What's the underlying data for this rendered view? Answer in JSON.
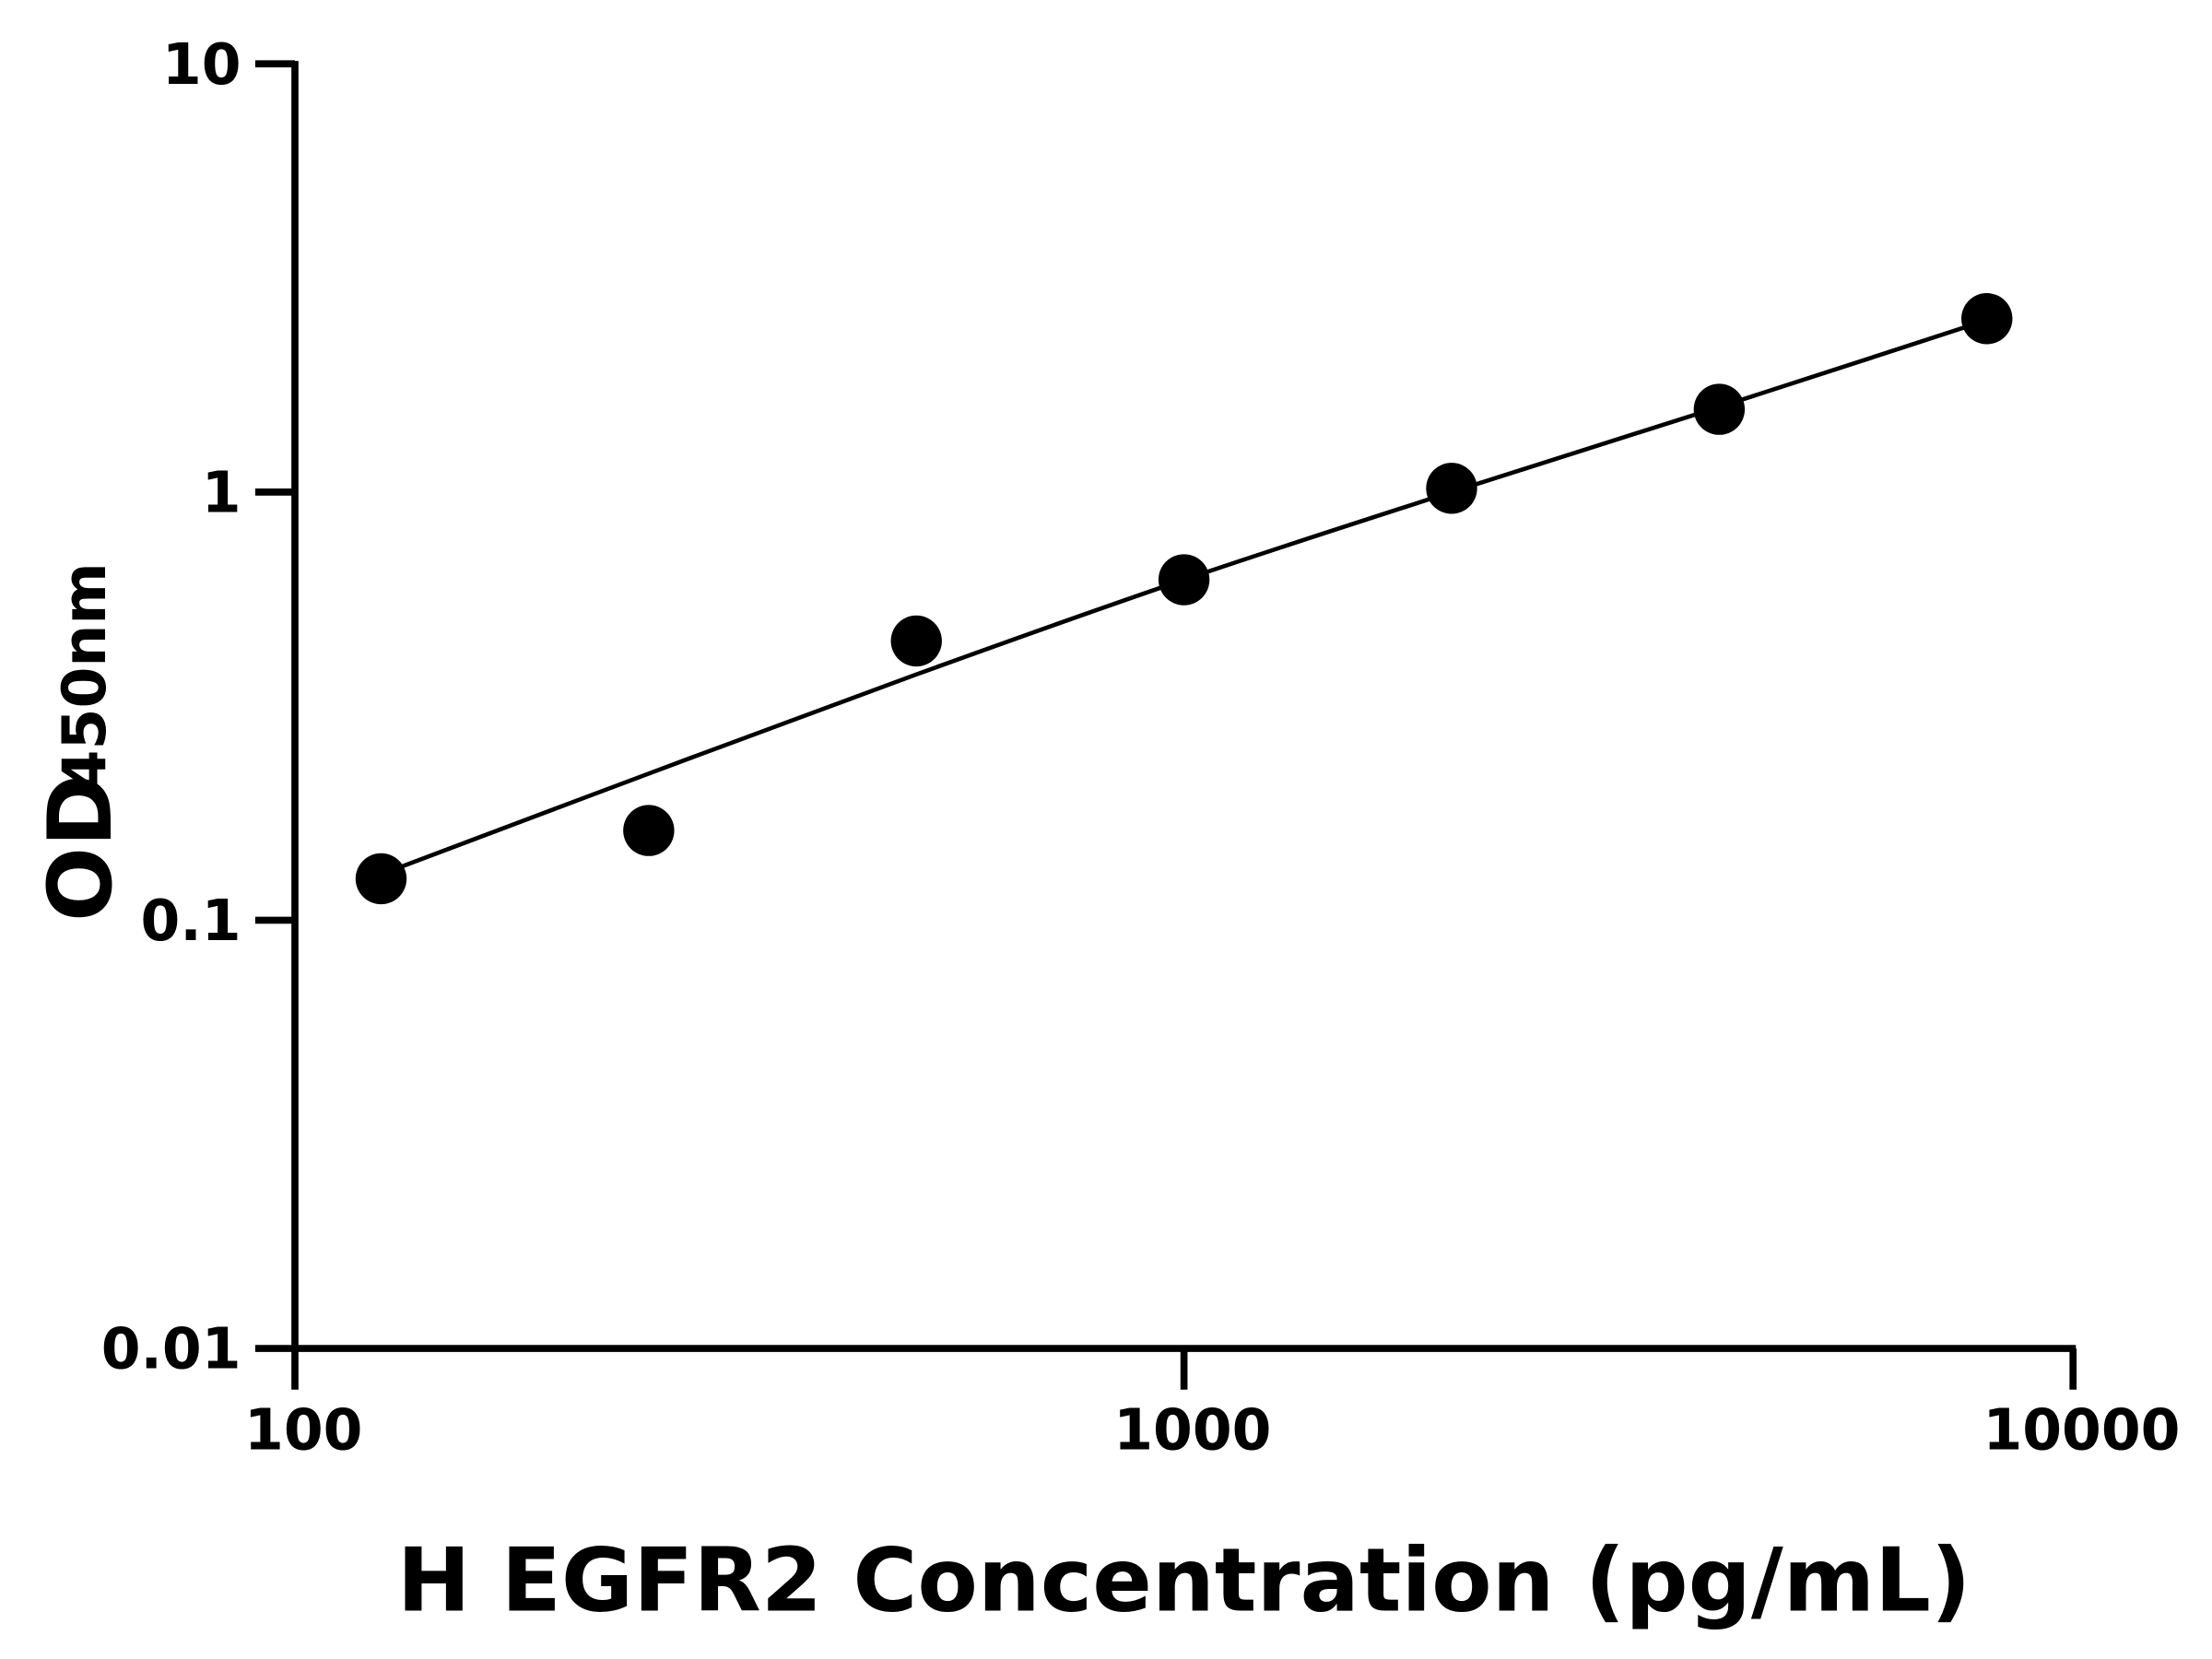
{
  "chart_data": {
    "type": "scatter",
    "title": "",
    "xlabel": "H EGFR2 Concentration (pg/mL)",
    "ylabel_main": "OD",
    "ylabel_sub": "450nm",
    "x_scale": "log",
    "y_scale": "log",
    "xlim": [
      100,
      10000
    ],
    "ylim": [
      0.01,
      10
    ],
    "x_ticks": [
      "100",
      "1000",
      "10000"
    ],
    "x_tick_values": [
      100,
      1000,
      10000
    ],
    "y_ticks": [
      "0.01",
      "0.1",
      "1",
      "10"
    ],
    "y_tick_values": [
      0.01,
      0.1,
      1,
      10
    ],
    "grid": false,
    "points": {
      "x": [
        125,
        250,
        500,
        1000,
        2000,
        4000,
        8000
      ],
      "y": [
        0.125,
        0.162,
        0.449,
        0.624,
        1.02,
        1.56,
        2.54
      ]
    },
    "fit_curve": {
      "x": [
        125,
        250,
        500,
        1000,
        2000,
        4000,
        8000
      ],
      "y": [
        0.128,
        0.22,
        0.375,
        0.624,
        1.0,
        1.58,
        2.52
      ]
    },
    "colors": {
      "points": "#000000",
      "line": "#000000",
      "axes": "#000000"
    }
  }
}
